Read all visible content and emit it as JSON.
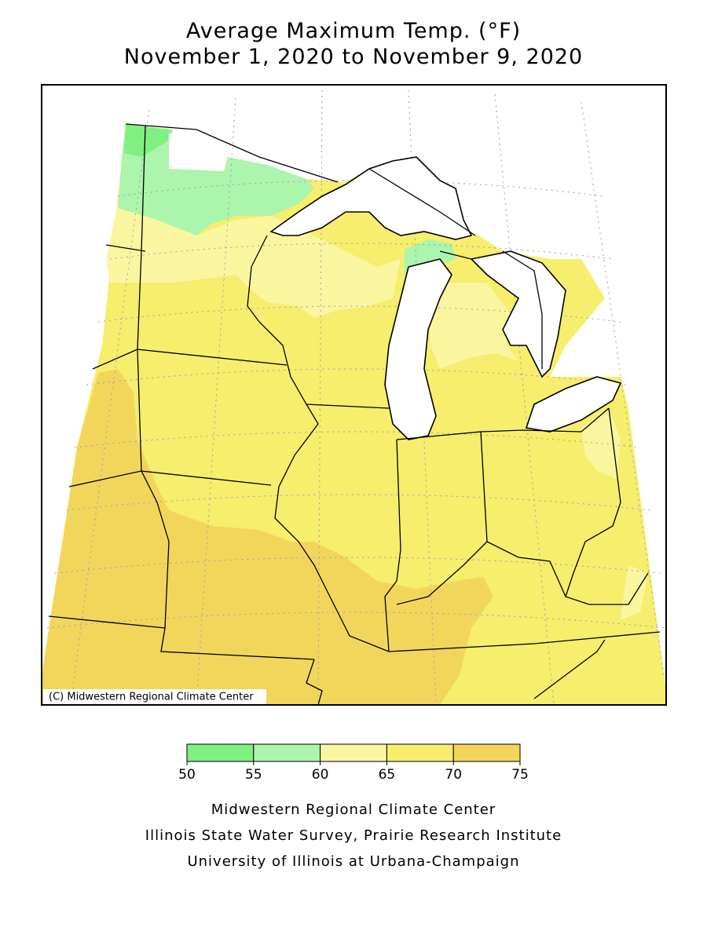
{
  "title": [
    "Average Maximum Temp. (°F)",
    "November 1, 2020 to November 9, 2020"
  ],
  "map": {
    "copyright": "(C) Midwestern Regional Climate Center"
  },
  "legend": {
    "ticks": [
      50,
      55,
      60,
      65,
      70,
      75
    ],
    "colors": [
      "#80f080",
      "#acf5ac",
      "#faf6a0",
      "#f6ee6c",
      "#f2d65c"
    ]
  },
  "credits": [
    "Midwestern Regional Climate Center",
    "Illinois State Water Survey, Prairie Research Institute",
    "University of Illinois at Urbana-Champaign"
  ]
}
